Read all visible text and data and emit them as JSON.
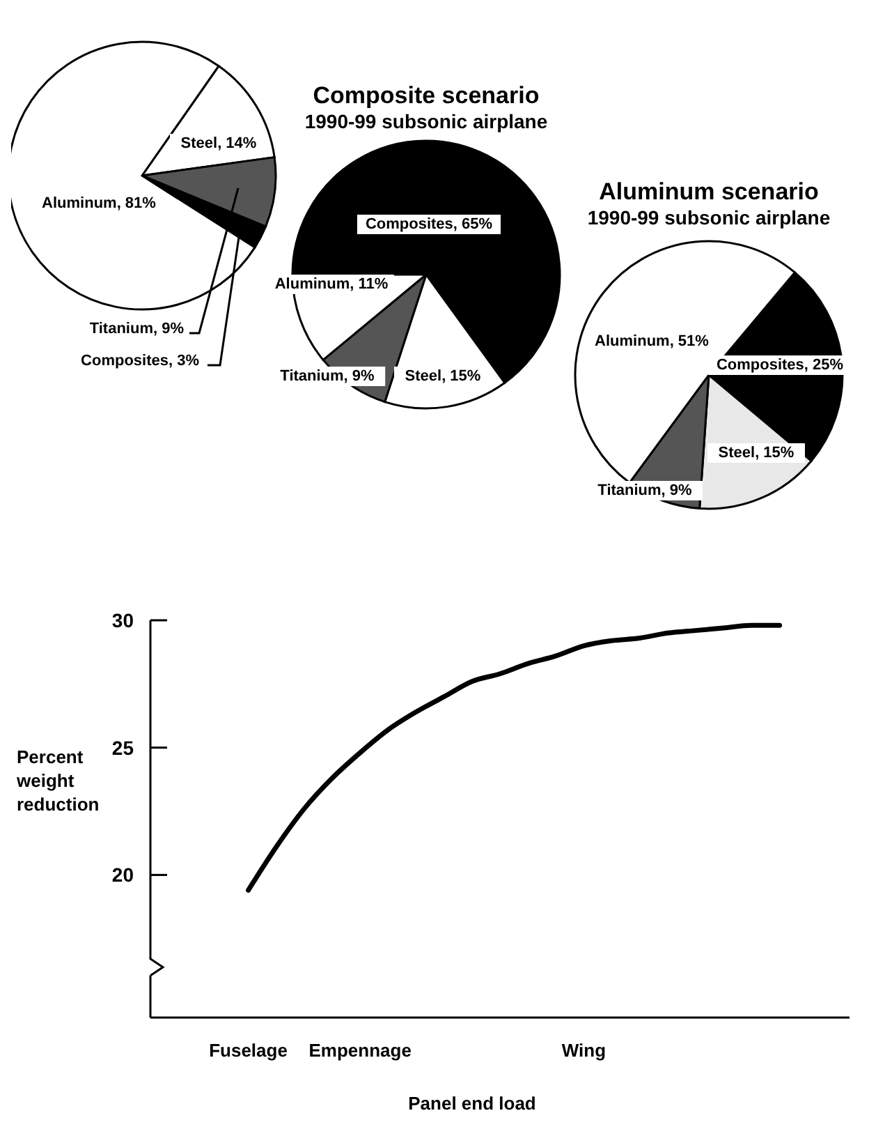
{
  "chart_data": [
    {
      "type": "pie",
      "categories": [
        "Steel",
        "Titanium",
        "Composites",
        "Aluminum"
      ],
      "values": [
        14,
        9,
        3,
        81
      ],
      "colors": [
        "#ffffff",
        "#555555",
        "#000000",
        "#ffffff"
      ],
      "value_labels": [
        "14%",
        "9%",
        "3%",
        "81%"
      ]
    },
    {
      "type": "pie",
      "title": "Composite scenario",
      "subtitle": "1990-99 subsonic airplane",
      "categories": [
        "Composites",
        "Steel",
        "Titanium",
        "Aluminum"
      ],
      "values": [
        65,
        15,
        9,
        11
      ],
      "colors": [
        "#000000",
        "#ffffff",
        "#555555",
        "#ffffff"
      ],
      "value_labels": [
        "65%",
        "15%",
        "9%",
        "11%"
      ]
    },
    {
      "type": "pie",
      "title": "Aluminum scenario",
      "subtitle": "1990-99 subsonic airplane",
      "categories": [
        "Composites",
        "Steel",
        "Titanium",
        "Aluminum"
      ],
      "values": [
        25,
        15,
        9,
        51
      ],
      "colors": [
        "#000000",
        "#e8e8e8",
        "#555555",
        "#ffffff"
      ],
      "value_labels": [
        "25%",
        "15%",
        "9%",
        "51%"
      ]
    },
    {
      "type": "line",
      "xlabel": "Panel end load",
      "ylabel": "Percent weight reduction",
      "categories": [
        null,
        null,
        null,
        "Fuselage",
        null,
        null,
        null,
        "Empennage",
        null,
        null,
        null,
        null,
        null,
        null,
        null,
        "Wing",
        null,
        null,
        null,
        null,
        null,
        null,
        null,
        null,
        null
      ],
      "values": [
        null,
        null,
        null,
        19.4,
        21.1,
        22.6,
        23.8,
        24.8,
        25.7,
        26.4,
        27.0,
        27.6,
        27.9,
        28.3,
        28.6,
        29.0,
        29.2,
        29.3,
        29.5,
        29.6,
        29.7,
        29.8,
        29.8,
        null,
        null
      ],
      "color": "#000000",
      "ylim": [
        14.4,
        30
      ],
      "yticks": [
        20,
        25,
        30
      ],
      "grid": false,
      "marker": "none",
      "line_style": "solid"
    }
  ]
}
